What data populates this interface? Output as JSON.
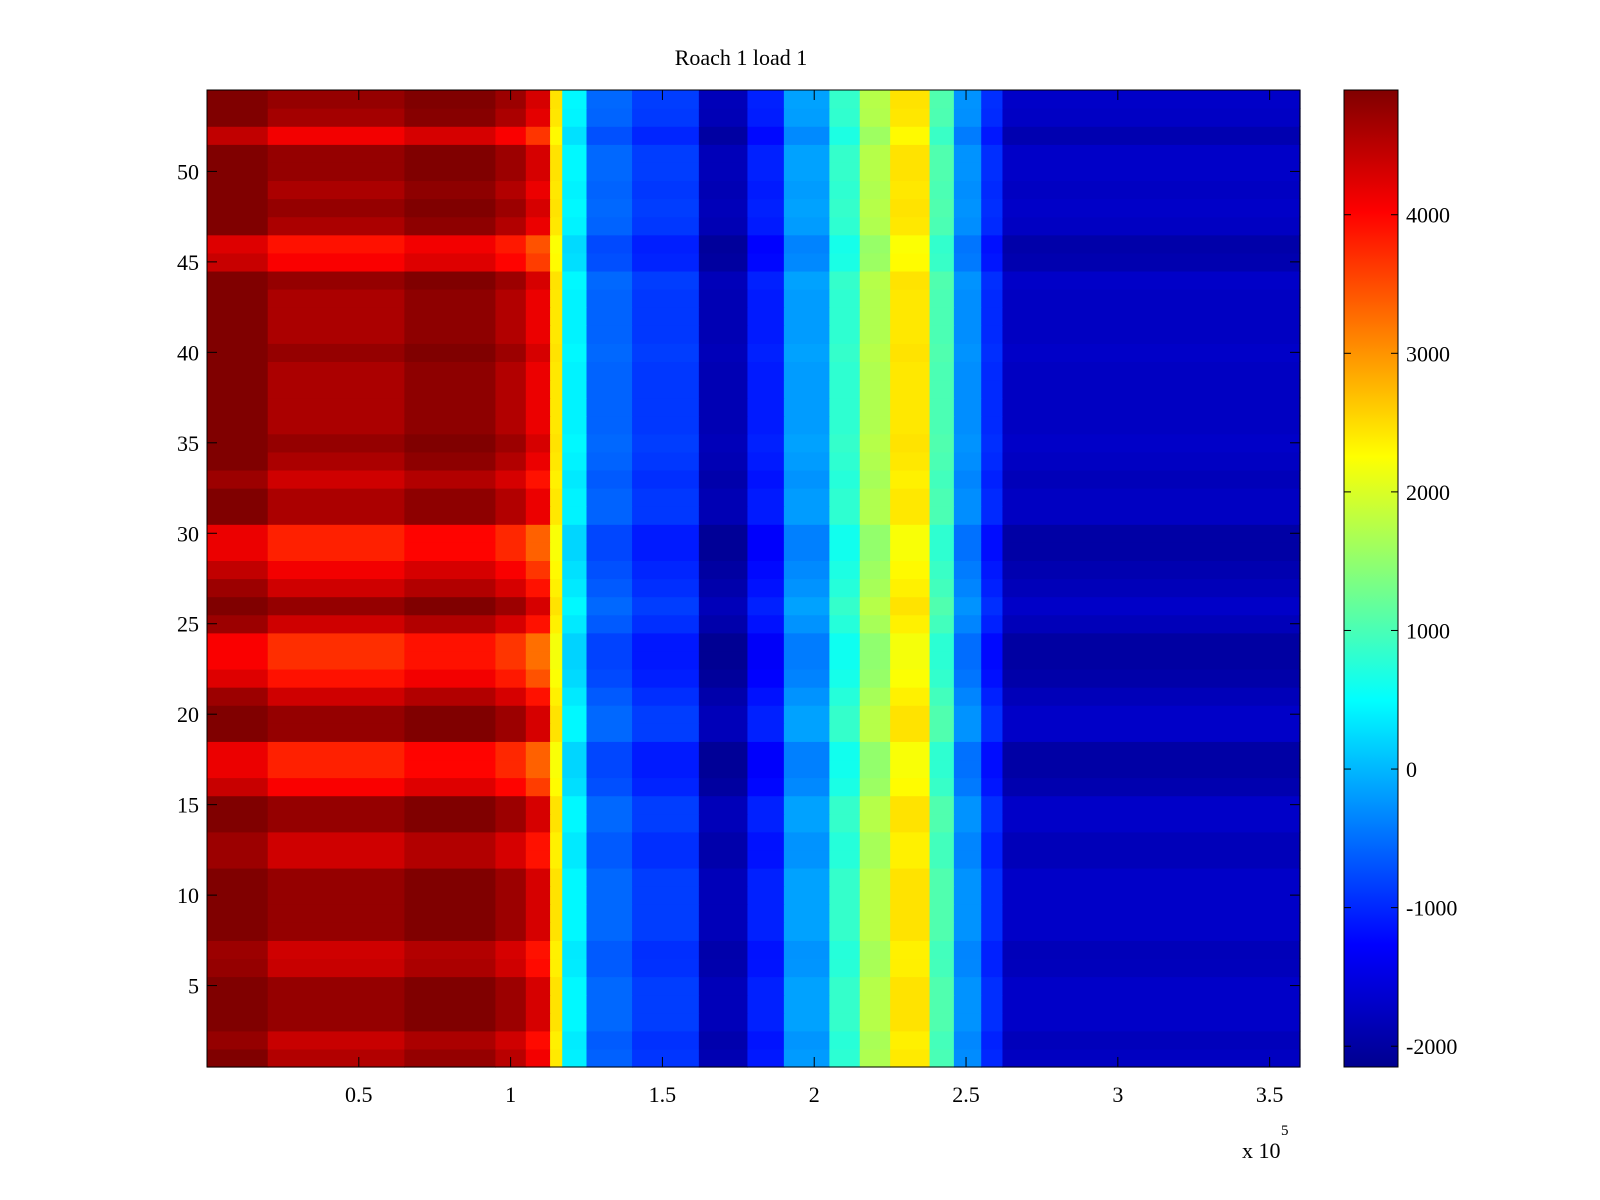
{
  "chart_data": {
    "type": "heatmap",
    "title": "Roach 1 load 1",
    "xlabel": "",
    "ylabel": "",
    "x_exponent_label": "x 10",
    "x_exponent_power": "5",
    "xlim": [
      0,
      3.6
    ],
    "ylim": [
      0.5,
      54.5
    ],
    "xticks": [
      0.5,
      1,
      1.5,
      2,
      2.5,
      3,
      3.5
    ],
    "xtick_labels": [
      "0.5",
      "1",
      "1.5",
      "2",
      "2.5",
      "3",
      "3.5"
    ],
    "yticks": [
      5,
      10,
      15,
      20,
      25,
      30,
      35,
      40,
      45,
      50
    ],
    "ytick_labels": [
      "5",
      "10",
      "15",
      "20",
      "25",
      "30",
      "35",
      "40",
      "45",
      "50"
    ],
    "colormap": "jet",
    "clim": [
      -2150,
      4900
    ],
    "colorbar_ticks": [
      -2000,
      -1000,
      0,
      1000,
      2000,
      3000,
      4000
    ],
    "colorbar_tick_labels": [
      "-2000",
      "-1000",
      "0",
      "1000",
      "2000",
      "3000",
      "4000"
    ],
    "n_rows": 54,
    "x_segments": [
      {
        "x_start": 0.0,
        "x_end": 0.2,
        "value": 4500
      },
      {
        "x_start": 0.2,
        "x_end": 0.65,
        "value": 4150
      },
      {
        "x_start": 0.65,
        "x_end": 0.95,
        "value": 4350
      },
      {
        "x_start": 0.95,
        "x_end": 1.05,
        "value": 4100
      },
      {
        "x_start": 1.05,
        "x_end": 1.13,
        "value": 3700
      },
      {
        "x_start": 1.13,
        "x_end": 1.17,
        "value": 2300
      },
      {
        "x_start": 1.17,
        "x_end": 1.25,
        "value": 300
      },
      {
        "x_start": 1.25,
        "x_end": 1.4,
        "value": -700
      },
      {
        "x_start": 1.4,
        "x_end": 1.62,
        "value": -1000
      },
      {
        "x_start": 1.62,
        "x_end": 1.78,
        "value": -1900
      },
      {
        "x_start": 1.78,
        "x_end": 1.9,
        "value": -1200
      },
      {
        "x_start": 1.9,
        "x_end": 2.05,
        "value": -300
      },
      {
        "x_start": 2.05,
        "x_end": 2.15,
        "value": 700
      },
      {
        "x_start": 2.15,
        "x_end": 2.25,
        "value": 1600
      },
      {
        "x_start": 2.25,
        "x_end": 2.38,
        "value": 2300
      },
      {
        "x_start": 2.38,
        "x_end": 2.46,
        "value": 900
      },
      {
        "x_start": 2.46,
        "x_end": 2.55,
        "value": -400
      },
      {
        "x_start": 2.55,
        "x_end": 2.62,
        "value": -1100
      },
      {
        "x_start": 2.62,
        "x_end": 3.6,
        "value": -1800
      }
    ],
    "row_offsets": [
      400,
      250,
      600,
      600,
      600,
      250,
      200,
      600,
      600,
      600,
      600,
      200,
      200,
      600,
      600,
      -100,
      -350,
      -350,
      600,
      600,
      200,
      -250,
      -450,
      -450,
      200,
      600,
      200,
      -50,
      -350,
      -350,
      450,
      450,
      200,
      450,
      600,
      450,
      450,
      450,
      450,
      600,
      450,
      450,
      450,
      600,
      -100,
      -250,
      450,
      600,
      450,
      600,
      600,
      -50,
      500,
      600
    ]
  }
}
